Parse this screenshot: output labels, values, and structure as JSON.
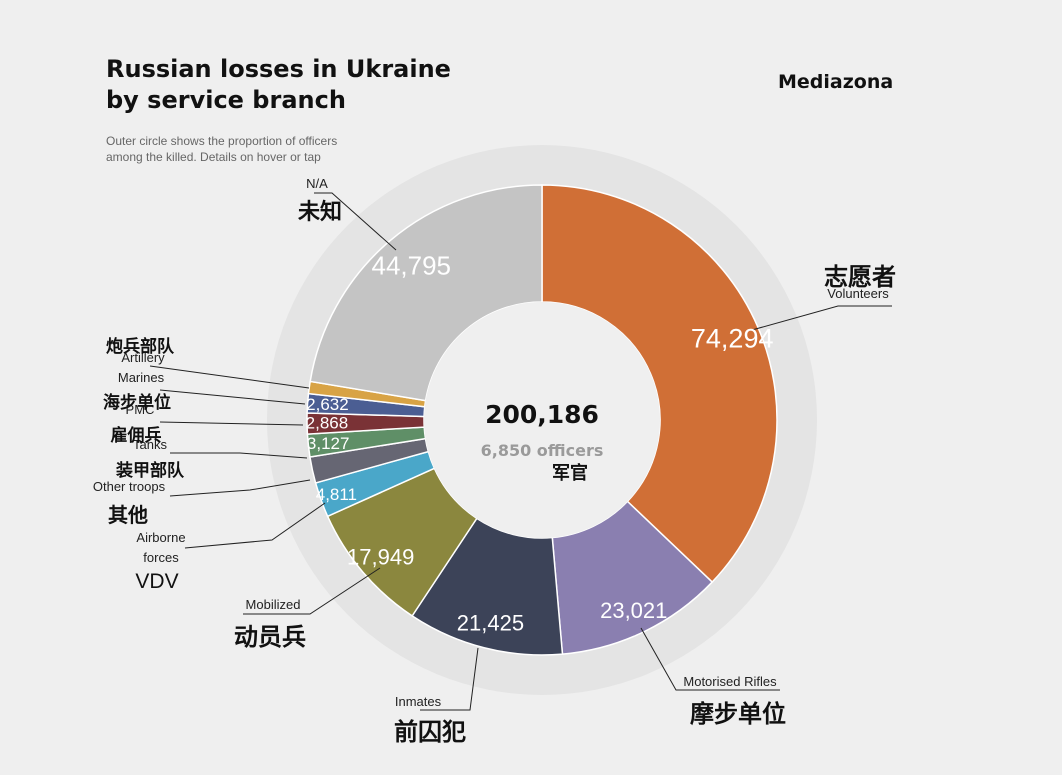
{
  "header": {
    "title_line1": "Russian losses in Ukraine",
    "title_line2": "by service branch",
    "subtitle_line1": "Outer circle shows the proportion of officers",
    "subtitle_line2": "among the killed. Details on hover or tap",
    "brand": "Mediazona"
  },
  "center": {
    "total": "200,186",
    "officers": "6,850 officers",
    "officers_cn": "军官"
  },
  "chart_data": {
    "type": "pie",
    "donut": true,
    "total": 200186,
    "officers_total": 6850,
    "slices": [
      {
        "en": "Volunteers",
        "cn": "志愿者",
        "value": 74294,
        "value_label": "74,294",
        "color": "#d06f36"
      },
      {
        "en": "Motorised Rifles",
        "cn": "摩步单位",
        "value": 23021,
        "value_label": "23,021",
        "color": "#8a7fb0"
      },
      {
        "en": "Inmates",
        "cn": "前囚犯",
        "value": 21425,
        "value_label": "21,425",
        "color": "#3c4358"
      },
      {
        "en": "Mobilized",
        "cn": "动员兵",
        "value": 17949,
        "value_label": "17,949",
        "color": "#8b873e"
      },
      {
        "en": "Airborne forces",
        "cn": "VDV",
        "value": 4811,
        "value_label": "4,811",
        "color": "#4aa7c9"
      },
      {
        "en": "Other troops",
        "cn": "其他",
        "value": 3600,
        "value_label": "",
        "color": "#666673"
      },
      {
        "en": "Tanks",
        "cn": "装甲部队",
        "value": 3127,
        "value_label": "3,127",
        "color": "#5f8f67"
      },
      {
        "en": "PMC",
        "cn": "雇佣兵",
        "value": 2868,
        "value_label": "2,868",
        "color": "#7a3236"
      },
      {
        "en": "Marines",
        "cn": "海步单位",
        "value": 2632,
        "value_label": "2,632",
        "color": "#4b5e93"
      },
      {
        "en": "Artillery",
        "cn": "炮兵部队",
        "value": 1664,
        "value_label": "",
        "color": "#d8a345"
      },
      {
        "en": "N/A",
        "cn": "未知",
        "value": 44795,
        "value_label": "44,795",
        "color": "#c4c4c4"
      }
    ]
  }
}
